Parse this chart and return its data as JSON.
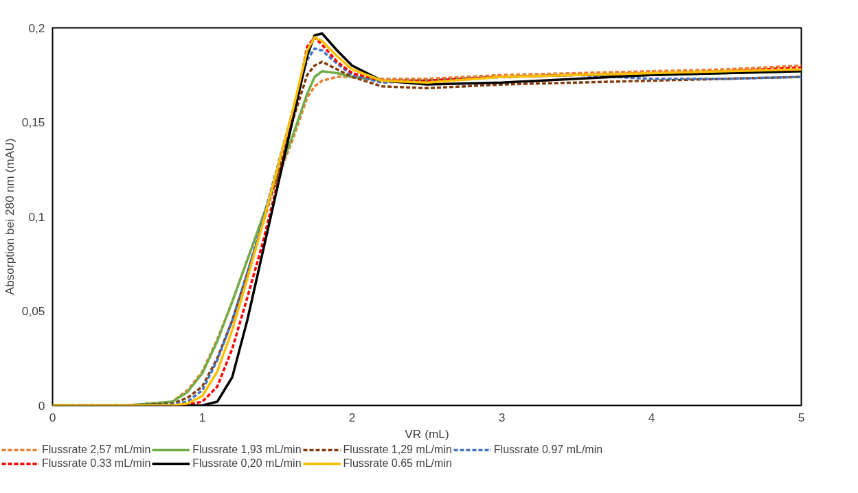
{
  "chart_data": {
    "type": "line",
    "xlabel": "VR (mL)",
    "ylabel": "Absorption bei 280 nm (mAU)",
    "x": [
      0,
      0.5,
      0.8,
      0.9,
      1.0,
      1.1,
      1.2,
      1.3,
      1.4,
      1.5,
      1.6,
      1.7,
      1.75,
      1.8,
      1.9,
      2.0,
      2.2,
      2.5,
      3,
      3.5,
      4,
      4.5,
      5
    ],
    "series": [
      {
        "name": "Flussrate 2,57 mL/min",
        "color": "#ed7d31",
        "line_style": "dashed",
        "values": [
          0,
          0,
          0.002,
          0.008,
          0.018,
          0.035,
          0.055,
          0.077,
          0.099,
          0.12,
          0.14,
          0.163,
          0.169,
          0.172,
          0.174,
          0.174,
          0.173,
          0.173,
          0.175,
          0.176,
          0.177,
          0.178,
          0.18
        ]
      },
      {
        "name": "Flussrate 1,93 mL/min",
        "color": "#70ad47",
        "line_style": "solid",
        "values": [
          0,
          0,
          0.002,
          0.007,
          0.017,
          0.034,
          0.055,
          0.077,
          0.099,
          0.121,
          0.142,
          0.165,
          0.174,
          0.177,
          0.176,
          0.174,
          0.172,
          0.172,
          0.174,
          0.175,
          0.175,
          0.176,
          0.177
        ]
      },
      {
        "name": "Flussrate 1,29 mL/min",
        "color": "#843c0c",
        "line_style": "dashed",
        "values": [
          0,
          0,
          0.001,
          0.004,
          0.01,
          0.025,
          0.045,
          0.07,
          0.095,
          0.122,
          0.15,
          0.175,
          0.18,
          0.182,
          0.178,
          0.174,
          0.169,
          0.168,
          0.17,
          0.171,
          0.172,
          0.173,
          0.174
        ]
      },
      {
        "name": "Flussrate 0.97 mL/min",
        "color": "#4472c4",
        "line_style": "dashed",
        "values": [
          0,
          0,
          0.0005,
          0.002,
          0.008,
          0.024,
          0.045,
          0.07,
          0.097,
          0.126,
          0.155,
          0.183,
          0.189,
          0.188,
          0.181,
          0.175,
          0.171,
          0.172,
          0.174,
          0.175,
          0.173,
          0.173,
          0.174
        ]
      },
      {
        "name": "Flussrate 0.33 mL/min",
        "color": "#ff0000",
        "line_style": "dashed",
        "values": [
          null,
          null,
          0,
          0.0005,
          0.002,
          0.01,
          0.03,
          0.057,
          0.085,
          0.117,
          0.15,
          0.19,
          0.195,
          0.191,
          0.182,
          0.176,
          0.172,
          0.172,
          0.174,
          0.175,
          0.176,
          0.177,
          0.179
        ]
      },
      {
        "name": "Flussrate 0,20 mL/min",
        "color": "#000000",
        "line_style": "solid",
        "values": [
          0,
          0,
          0,
          0,
          0,
          0.002,
          0.015,
          0.045,
          0.08,
          0.115,
          0.15,
          0.185,
          0.196,
          0.197,
          0.188,
          0.18,
          0.172,
          0.17,
          0.171,
          0.173,
          0.175,
          0.176,
          0.177
        ]
      },
      {
        "name": "Flussrate 0.65 mL/min",
        "color": "#ffc000",
        "line_style": "solid",
        "values": [
          0,
          0,
          0,
          0.001,
          0.005,
          0.018,
          0.04,
          0.067,
          0.095,
          0.125,
          0.155,
          0.188,
          0.195,
          0.193,
          0.185,
          0.178,
          0.172,
          0.171,
          0.174,
          0.175,
          0.176,
          0.177,
          0.178
        ]
      }
    ],
    "xlim": [
      0,
      5
    ],
    "xticks": [
      0,
      1,
      2,
      3,
      4,
      5
    ],
    "ylim": [
      0,
      0.2
    ],
    "yticks": [
      0,
      {
        "value": 0.05,
        "label": "0,05"
      },
      {
        "value": 0.1,
        "label": "0,1"
      },
      {
        "value": 0.15,
        "label": "0,15"
      },
      {
        "value": 0.2,
        "label": "0,2"
      }
    ],
    "grid": false,
    "legend": "bottom",
    "marker": "none"
  }
}
